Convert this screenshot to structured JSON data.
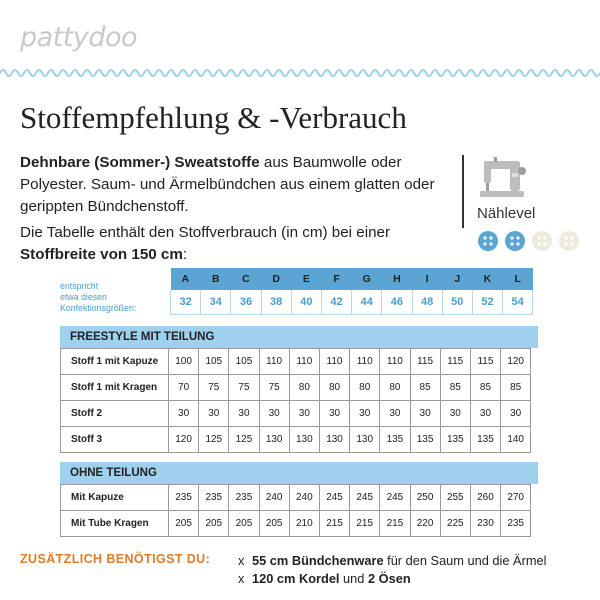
{
  "logo": "pattydoo",
  "title": "Stoffempfehlung & -Verbrauch",
  "intro": {
    "bold1": "Dehnbare (Sommer-) Sweatstoffe",
    "text1": " aus Baumwolle oder Polyester. Saum- und Ärmelbündchen aus einem glatten oder gerippten Bündchenstoff.",
    "text2": "Die Tabelle enthält den Stoffverbrauch (in cm) bei einer ",
    "bold2": "Stoffbreite von 150 cm",
    "text2_end": ":"
  },
  "naehlevel": {
    "label": "Nählevel",
    "level": 2,
    "max": 4,
    "active_color": "#5ba5d5",
    "inactive_color": "#ecebdc"
  },
  "sizes": {
    "note_line1": "entspricht",
    "note_line2": "etwa diesen",
    "note_line3": "Konfektionsgrößen:",
    "letters": [
      "A",
      "B",
      "C",
      "D",
      "E",
      "F",
      "G",
      "H",
      "I",
      "J",
      "K",
      "L"
    ],
    "numbers": [
      "32",
      "34",
      "36",
      "38",
      "40",
      "42",
      "44",
      "46",
      "48",
      "50",
      "52",
      "54"
    ]
  },
  "sections": [
    {
      "header": "FREESTYLE MIT TEILUNG",
      "rows": [
        {
          "label": "Stoff 1 mit Kapuze",
          "values": [
            "100",
            "105",
            "105",
            "110",
            "110",
            "110",
            "110",
            "110",
            "115",
            "115",
            "115",
            "120"
          ]
        },
        {
          "label": "Stoff 1 mit Kragen",
          "values": [
            "70",
            "75",
            "75",
            "75",
            "80",
            "80",
            "80",
            "80",
            "85",
            "85",
            "85",
            "85"
          ]
        },
        {
          "label": "Stoff 2",
          "values": [
            "30",
            "30",
            "30",
            "30",
            "30",
            "30",
            "30",
            "30",
            "30",
            "30",
            "30",
            "30"
          ]
        },
        {
          "label": "Stoff 3",
          "values": [
            "120",
            "125",
            "125",
            "130",
            "130",
            "130",
            "130",
            "135",
            "135",
            "135",
            "135",
            "140"
          ]
        }
      ]
    },
    {
      "header": "OHNE TEILUNG",
      "rows": [
        {
          "label": "Mit Kapuze",
          "values": [
            "235",
            "235",
            "235",
            "240",
            "240",
            "245",
            "245",
            "245",
            "250",
            "255",
            "260",
            "270"
          ]
        },
        {
          "label": "Mit Tube Kragen",
          "values": [
            "205",
            "205",
            "205",
            "205",
            "210",
            "215",
            "215",
            "215",
            "220",
            "225",
            "230",
            "235"
          ]
        }
      ]
    }
  ],
  "extra": {
    "label": "ZUSÄTZLICH BENÖTIGST DU:",
    "item1_bold": "55 cm Bündchenware",
    "item1_text": " für den Saum und die Ärmel",
    "item2_bold1": "120 cm Kordel",
    "item2_text": " und ",
    "item2_bold2": "2 Ösen",
    "bullet": "x"
  },
  "colors": {
    "accent_blue": "#5ba5d5",
    "light_blue": "#9fd0ee",
    "orange": "#e07b2a"
  }
}
